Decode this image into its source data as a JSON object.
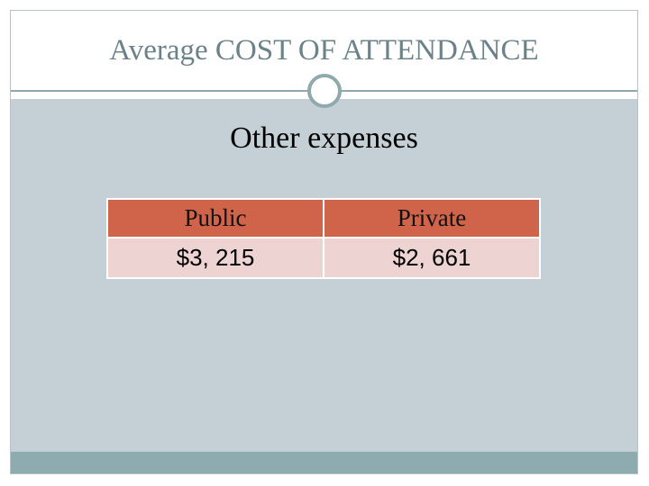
{
  "slide": {
    "title": "Average COST OF ATTENDANCE",
    "subtitle": "Other expenses"
  },
  "table": {
    "headers": [
      "Public",
      "Private"
    ],
    "values": [
      "$3, 215",
      "$2, 661"
    ]
  },
  "colors": {
    "accent": "#8fa9ac",
    "header_cell": "#d0644a",
    "value_cell": "#edd3d1",
    "content_background": "#c4d0d6",
    "title_text": "#6b8288"
  }
}
